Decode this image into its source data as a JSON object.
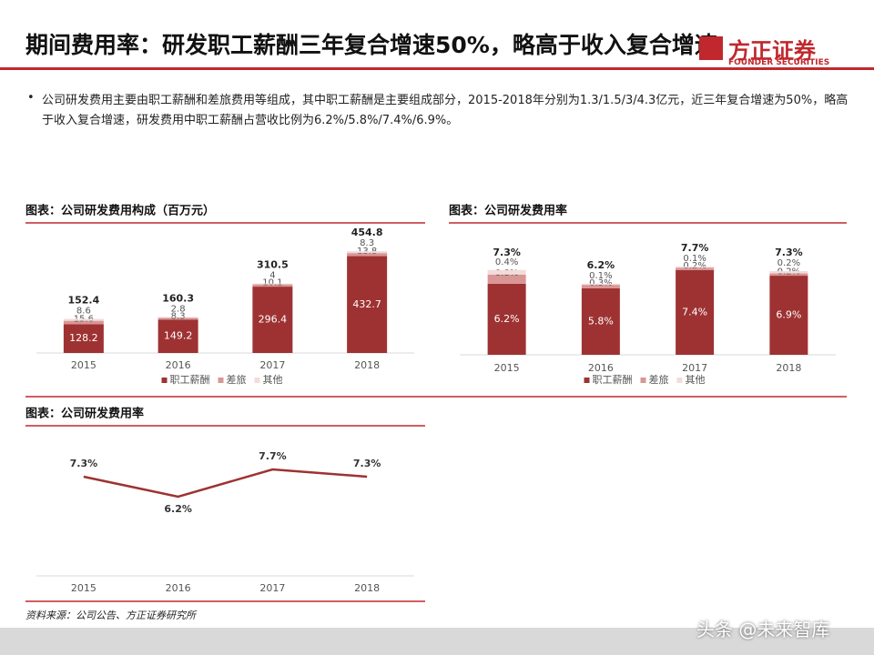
{
  "header": {
    "title": "期间费用率：研发职工薪酬三年复合增速50%，略高于收入复合增速",
    "logo_name": "方正证券",
    "logo_subtitle": "FOUNDER SECURITIES"
  },
  "bullet": "公司研发费用主要由职工薪酬和差旅费用等组成，其中职工薪酬是主要组成部分，2015-2018年分别为1.3/1.5/3/4.3亿元，近三年复合增速为50%，略高于收入复合增速，研发费用中职工薪酬占营收比例为6.2%/5.8%/7.4%/6.9%。",
  "source": "资料来源：公司公告、方正证券研究所",
  "watermark": "头条 @未来智库",
  "chart_data": [
    {
      "type": "stacked_bar",
      "title": "图表：公司研发费用构成（百万元）",
      "categories": [
        "2015",
        "2016",
        "2017",
        "2018"
      ],
      "series": [
        {
          "name": "职工薪酬",
          "color": "#9e3232",
          "values": [
            128.2,
            149.2,
            296.4,
            432.7
          ]
        },
        {
          "name": "差旅",
          "color": "#d99694",
          "values": [
            15.6,
            8.3,
            10.1,
            13.8
          ]
        },
        {
          "name": "其他",
          "color": "#f2dcdb",
          "values": [
            8.6,
            2.8,
            4.0,
            8.3
          ]
        }
      ],
      "totals": [
        152.4,
        160.3,
        310.5,
        454.8
      ],
      "ylim": [
        0,
        500
      ]
    },
    {
      "type": "stacked_bar",
      "title": "图表：公司研发费用率",
      "categories": [
        "2015",
        "2016",
        "2017",
        "2018"
      ],
      "series": [
        {
          "name": "职工薪酬",
          "color": "#9e3232",
          "values": [
            6.2,
            5.8,
            7.4,
            6.9
          ],
          "value_labels": [
            "6.2%",
            "5.8%",
            "7.4%",
            "6.9%"
          ]
        },
        {
          "name": "差旅",
          "color": "#d99694",
          "values": [
            0.8,
            0.3,
            0.2,
            0.2
          ],
          "value_labels": [
            "0.8%",
            "0.3%",
            "0.2%",
            "0.2%"
          ]
        },
        {
          "name": "其他",
          "color": "#f2dcdb",
          "values": [
            0.4,
            0.1,
            0.1,
            0.2
          ],
          "value_labels": [
            "0.4%",
            "0.1%",
            "0.1%",
            "0.2%"
          ]
        }
      ],
      "totals": [
        7.3,
        6.2,
        7.7,
        7.3
      ],
      "total_labels": [
        "7.3%",
        "6.2%",
        "7.7%",
        "7.3%"
      ],
      "ylim": [
        0,
        10
      ]
    },
    {
      "type": "line",
      "title": "图表：公司研发费用率",
      "categories": [
        "2015",
        "2016",
        "2017",
        "2018"
      ],
      "values": [
        7.3,
        6.2,
        7.7,
        7.3
      ],
      "value_labels": [
        "7.3%",
        "6.2%",
        "7.7%",
        "7.3%"
      ],
      "color": "#9e3232",
      "ylim": [
        5,
        8.5
      ]
    }
  ]
}
